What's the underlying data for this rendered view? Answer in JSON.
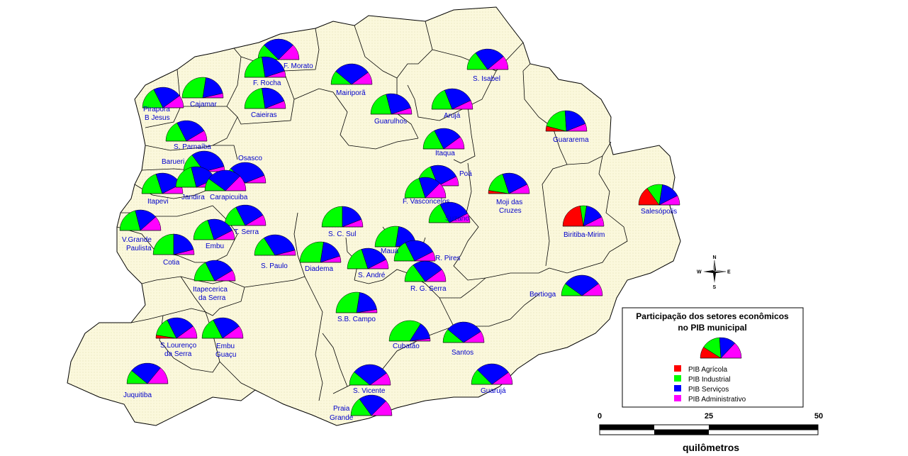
{
  "colors": {
    "agricola": "#ff0000",
    "industrial": "#00ff00",
    "servicos": "#0000ff",
    "administrativo": "#ff00ff",
    "land": "#fbf8dc",
    "label": "#0000cc"
  },
  "legend": {
    "title_line1": "Participação dos setores econômicos",
    "title_line2": "no PIB municipal",
    "items": [
      {
        "label": "PIB Agrícola",
        "sector": "agricola"
      },
      {
        "label": "PIB Industrial",
        "sector": "industrial"
      },
      {
        "label": "PIB Serviços",
        "sector": "servicos"
      },
      {
        "label": "PIB Administrativo",
        "sector": "administrativo"
      }
    ],
    "sample_shares": [
      0.18,
      0.3,
      0.26,
      0.26
    ]
  },
  "scale": {
    "ticks": [
      "0",
      "25",
      "50"
    ],
    "unit": "quilômetros"
  },
  "compass": {
    "n": "N",
    "s": "S",
    "e": "E",
    "w": "W"
  },
  "municipalities": [
    {
      "name": "F. Morato",
      "shares": [
        0,
        0.25,
        0.5,
        0.25
      ]
    },
    {
      "name": "F. Rocha",
      "shares": [
        0,
        0.45,
        0.45,
        0.1
      ]
    },
    {
      "name": "Mairiporã",
      "shares": [
        0,
        0.22,
        0.58,
        0.2
      ]
    },
    {
      "name": "S. Isabel",
      "shares": [
        0,
        0.3,
        0.48,
        0.22
      ]
    },
    {
      "name": "Pirapora B Jesus",
      "shares": [
        0,
        0.35,
        0.45,
        0.2
      ]
    },
    {
      "name": "Cajamar",
      "shares": [
        0,
        0.55,
        0.38,
        0.07
      ]
    },
    {
      "name": "Caieiras",
      "shares": [
        0,
        0.45,
        0.43,
        0.12
      ]
    },
    {
      "name": "Guarulhos",
      "shares": [
        0,
        0.42,
        0.48,
        0.1
      ]
    },
    {
      "name": "Arujá",
      "shares": [
        0,
        0.38,
        0.48,
        0.14
      ]
    },
    {
      "name": "S. Parnaíba",
      "shares": [
        0,
        0.35,
        0.48,
        0.17
      ]
    },
    {
      "name": "Guararema",
      "shares": [
        0.08,
        0.4,
        0.4,
        0.12
      ]
    },
    {
      "name": "Itaqua",
      "shares": [
        0,
        0.35,
        0.45,
        0.2
      ]
    },
    {
      "name": "Barueri",
      "shares": [
        0,
        0.3,
        0.62,
        0.08
      ]
    },
    {
      "name": "Osasco",
      "shares": [
        0,
        0.25,
        0.63,
        0.12
      ]
    },
    {
      "name": "Poá",
      "shares": [
        0,
        0.38,
        0.47,
        0.15
      ]
    },
    {
      "name": "Itapevi",
      "shares": [
        0,
        0.4,
        0.45,
        0.15
      ]
    },
    {
      "name": "Jandira",
      "shares": [
        0,
        0.42,
        0.45,
        0.13
      ]
    },
    {
      "name": "Carapicuiba",
      "shares": [
        0,
        0.2,
        0.55,
        0.25
      ]
    },
    {
      "name": "Moji das Cruzes",
      "shares": [
        0.05,
        0.35,
        0.45,
        0.15
      ]
    },
    {
      "name": "Salesópolis",
      "shares": [
        0.3,
        0.25,
        0.3,
        0.15
      ]
    },
    {
      "name": "F. Vasconcelos",
      "shares": [
        0,
        0.4,
        0.35,
        0.25
      ]
    },
    {
      "name": "Suzano",
      "shares": [
        0,
        0.35,
        0.5,
        0.15
      ]
    },
    {
      "name": "Biritiba-Mirim",
      "shares": [
        0.45,
        0.1,
        0.3,
        0.15
      ]
    },
    {
      "name": "V.Grande Paulista",
      "shares": [
        0,
        0.42,
        0.35,
        0.23
      ]
    },
    {
      "name": "T. Serra",
      "shares": [
        0,
        0.35,
        0.48,
        0.17
      ]
    },
    {
      "name": "Embu",
      "shares": [
        0,
        0.4,
        0.45,
        0.15
      ]
    },
    {
      "name": "S. C. Sul",
      "shares": [
        0,
        0.5,
        0.38,
        0.12
      ]
    },
    {
      "name": "Mauá",
      "shares": [
        0,
        0.55,
        0.4,
        0.05
      ]
    },
    {
      "name": "R. Pires",
      "shares": [
        0,
        0.35,
        0.5,
        0.15
      ]
    },
    {
      "name": "Cotia",
      "shares": [
        0,
        0.5,
        0.42,
        0.08
      ]
    },
    {
      "name": "S. Paulo",
      "shares": [
        0,
        0.32,
        0.6,
        0.08
      ]
    },
    {
      "name": "Diadema",
      "shares": [
        0,
        0.55,
        0.35,
        0.1
      ]
    },
    {
      "name": "S. André",
      "shares": [
        0,
        0.4,
        0.45,
        0.15
      ]
    },
    {
      "name": "R. G. Serra",
      "shares": [
        0,
        0.3,
        0.5,
        0.2
      ]
    },
    {
      "name": "Itapecerica da Serra",
      "shares": [
        0,
        0.35,
        0.48,
        0.17
      ]
    },
    {
      "name": "Bertioga",
      "shares": [
        0,
        0.2,
        0.6,
        0.2
      ]
    },
    {
      "name": "S.B. Campo",
      "shares": [
        0,
        0.55,
        0.4,
        0.05
      ]
    },
    {
      "name": "S.Lourenço da Serra",
      "shares": [
        0.05,
        0.3,
        0.45,
        0.2
      ]
    },
    {
      "name": "Embu Guaçu",
      "shares": [
        0,
        0.35,
        0.45,
        0.2
      ]
    },
    {
      "name": "Cubatão",
      "shares": [
        0,
        0.68,
        0.28,
        0.04
      ]
    },
    {
      "name": "Santos",
      "shares": [
        0,
        0.22,
        0.6,
        0.18
      ]
    },
    {
      "name": "Juquitiba",
      "shares": [
        0,
        0.22,
        0.5,
        0.28
      ]
    },
    {
      "name": "S. Vicente",
      "shares": [
        0,
        0.22,
        0.58,
        0.2
      ]
    },
    {
      "name": "Guarujá",
      "shares": [
        0,
        0.25,
        0.55,
        0.2
      ]
    },
    {
      "name": "Praia Grande",
      "shares": [
        0,
        0.3,
        0.45,
        0.25
      ]
    }
  ]
}
